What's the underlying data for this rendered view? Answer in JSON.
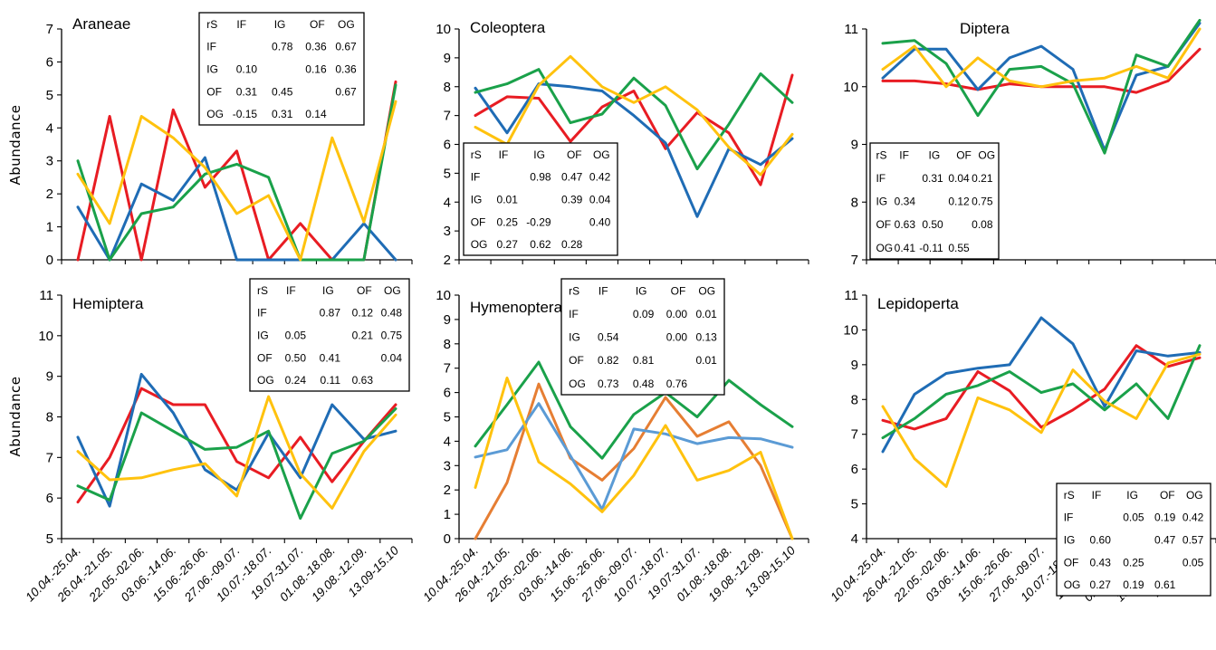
{
  "chart_data": [
    {
      "type": "line",
      "title": "Araneae",
      "ylabel": "Abundance",
      "ylim": [
        0,
        7
      ],
      "yticks": [
        0,
        1,
        2,
        3,
        4,
        5,
        6,
        7
      ],
      "categories": [
        "10.04.-25.04.",
        "26.04.-21.05.",
        "22.05.-02.06.",
        "03.06.-14.06.",
        "15.06.-26.06.",
        "27.06.-09.07.",
        "10.07.-18.07.",
        "19.07-31.07.",
        "01.08.-18.08.",
        "19.08.-12.09.",
        "13.09-15.10"
      ],
      "series": [
        {
          "color": "#e81c23",
          "values": [
            0,
            4.35,
            0,
            4.55,
            2.2,
            3.3,
            0,
            1.1,
            0,
            0,
            5.4
          ]
        },
        {
          "color": "#1f6cb5",
          "values": [
            1.6,
            0,
            2.3,
            1.8,
            3.1,
            0,
            0,
            0,
            0,
            1.1,
            0
          ]
        },
        {
          "color": "#1aa14a",
          "values": [
            3.0,
            0,
            1.4,
            1.6,
            2.6,
            2.9,
            2.5,
            0,
            0,
            0,
            5.3
          ]
        },
        {
          "color": "#ffc20e",
          "values": [
            2.6,
            1.1,
            4.35,
            3.7,
            2.8,
            1.4,
            1.95,
            0,
            3.7,
            1.15,
            4.8
          ]
        }
      ],
      "table": {
        "headers": [
          "rS",
          "IF",
          "IG",
          "OF",
          "OG"
        ],
        "rows": [
          [
            "IF",
            "",
            "0.78",
            "0.36",
            "0.67"
          ],
          [
            "IG",
            "0.10",
            "",
            "0.16",
            "0.36"
          ],
          [
            "OF",
            "0.31",
            "0.45",
            "",
            "0.67"
          ],
          [
            "OG",
            "-0.15",
            "0.31",
            "0.14",
            ""
          ]
        ]
      }
    },
    {
      "type": "line",
      "title": "Coleoptera",
      "ylabel": "",
      "ylim": [
        2,
        10
      ],
      "yticks": [
        2,
        3,
        4,
        5,
        6,
        7,
        8,
        9,
        10
      ],
      "categories": [
        "10.04.-25.04.",
        "26.04.-21.05.",
        "22.05.-02.06.",
        "03.06.-14.06.",
        "15.06.-26.06.",
        "27.06.-09.07.",
        "10.07.-18.07.",
        "19.07-31.07.",
        "01.08.-18.08.",
        "19.08.-12.09.",
        "13.09-15.10"
      ],
      "series": [
        {
          "color": "#e81c23",
          "values": [
            7.0,
            7.65,
            7.6,
            6.1,
            7.3,
            7.85,
            5.85,
            7.1,
            6.4,
            4.6,
            8.4
          ]
        },
        {
          "color": "#1f6cb5",
          "values": [
            7.95,
            6.4,
            8.1,
            8.0,
            7.85,
            7.0,
            6.05,
            3.5,
            5.85,
            5.3,
            6.2
          ]
        },
        {
          "color": "#1aa14a",
          "values": [
            7.8,
            8.1,
            8.6,
            6.75,
            7.05,
            8.3,
            7.35,
            5.15,
            6.7,
            8.45,
            7.45
          ]
        },
        {
          "color": "#ffc20e",
          "values": [
            6.6,
            6.0,
            8.05,
            9.05,
            8.0,
            7.45,
            8.0,
            7.2,
            5.9,
            4.95,
            6.35
          ]
        }
      ],
      "table": {
        "headers": [
          "rS",
          "IF",
          "IG",
          "OF",
          "OG"
        ],
        "rows": [
          [
            "IF",
            "",
            "0.98",
            "0.47",
            "0.42"
          ],
          [
            "IG",
            "0.01",
            "",
            "0.39",
            "0.04"
          ],
          [
            "OF",
            "0.25",
            "-0.29",
            "",
            "0.40"
          ],
          [
            "OG",
            "0.27",
            "0.62",
            "0.28",
            ""
          ]
        ]
      }
    },
    {
      "type": "line",
      "title": "Diptera",
      "ylabel": "",
      "ylim": [
        7,
        11
      ],
      "yticks": [
        7,
        8,
        9,
        10,
        11
      ],
      "categories": [
        "10.04.-25.04.",
        "26.04.-21.05.",
        "22.05.-02.06.",
        "03.06.-14.06.",
        "15.06.-26.06.",
        "27.06.-09.07.",
        "10.07.-18.07.",
        "19.07-31.07.",
        "01.08.-18.08.",
        "19.08.-12.09.",
        "13.09-15.10"
      ],
      "series": [
        {
          "color": "#e81c23",
          "values": [
            10.1,
            10.1,
            10.05,
            9.95,
            10.05,
            10.0,
            10.0,
            10.0,
            9.9,
            10.1,
            10.65
          ]
        },
        {
          "color": "#1f6cb5",
          "values": [
            10.15,
            10.65,
            10.65,
            9.95,
            10.5,
            10.7,
            10.3,
            8.9,
            10.2,
            10.35,
            11.1
          ]
        },
        {
          "color": "#1aa14a",
          "values": [
            10.75,
            10.8,
            10.4,
            9.5,
            10.3,
            10.35,
            10.05,
            8.85,
            10.55,
            10.35,
            11.15
          ]
        },
        {
          "color": "#ffc20e",
          "values": [
            10.3,
            10.7,
            10.0,
            10.5,
            10.1,
            10.0,
            10.1,
            10.15,
            10.35,
            10.15,
            11.0
          ]
        }
      ],
      "table": {
        "headers": [
          "rS",
          "IF",
          "IG",
          "OF",
          "OG"
        ],
        "rows": [
          [
            "IF",
            "",
            "0.31",
            "0.04",
            "0.21"
          ],
          [
            "IG",
            "0.34",
            "",
            "0.12",
            "0.75"
          ],
          [
            "OF",
            "0.63",
            "0.50",
            "",
            "0.08"
          ],
          [
            "OG",
            "0.41",
            "-0.11",
            "0.55",
            ""
          ]
        ]
      }
    },
    {
      "type": "line",
      "title": "Hemiptera",
      "ylabel": "Abundance",
      "ylim": [
        5,
        11
      ],
      "yticks": [
        5,
        6,
        7,
        8,
        9,
        10,
        11
      ],
      "categories": [
        "10.04.-25.04.",
        "26.04.-21.05.",
        "22.05.-02.06.",
        "03.06.-14.06.",
        "15.06.-26.06.",
        "27.06.-09.07.",
        "10.07.-18.07.",
        "19.07-31.07.",
        "01.08.-18.08.",
        "19.08.-12.09.",
        "13.09-15.10"
      ],
      "series": [
        {
          "color": "#e81c23",
          "values": [
            5.9,
            7.0,
            8.7,
            8.3,
            8.3,
            6.9,
            6.5,
            7.5,
            6.4,
            7.4,
            8.3
          ]
        },
        {
          "color": "#1f6cb5",
          "values": [
            7.5,
            5.8,
            9.05,
            8.1,
            6.7,
            6.2,
            7.6,
            6.5,
            8.3,
            7.45,
            7.65
          ]
        },
        {
          "color": "#1aa14a",
          "values": [
            6.3,
            5.95,
            8.1,
            7.65,
            7.2,
            7.25,
            7.65,
            5.5,
            7.1,
            7.4,
            8.2
          ]
        },
        {
          "color": "#ffc20e",
          "values": [
            7.15,
            6.45,
            6.5,
            6.7,
            6.85,
            6.05,
            8.5,
            6.6,
            5.75,
            7.15,
            8.05
          ]
        }
      ],
      "table": {
        "headers": [
          "rS",
          "IF",
          "IG",
          "OF",
          "OG"
        ],
        "rows": [
          [
            "IF",
            "",
            "0.87",
            "0.12",
            "0.48"
          ],
          [
            "IG",
            "0.05",
            "",
            "0.21",
            "0.75"
          ],
          [
            "OF",
            "0.50",
            "0.41",
            "",
            "0.04"
          ],
          [
            "OG",
            "0.24",
            "0.11",
            "0.63",
            ""
          ]
        ]
      }
    },
    {
      "type": "line",
      "title": "Hymenoptera",
      "ylabel": "",
      "ylim": [
        0,
        10
      ],
      "yticks": [
        0,
        1,
        2,
        3,
        4,
        5,
        6,
        7,
        8,
        9,
        10
      ],
      "categories": [
        "10.04.-25.04.",
        "26.04.-21.05.",
        "22.05.-02.06.",
        "03.06.-14.06.",
        "15.06.-26.06.",
        "27.06.-09.07.",
        "10.07.-18.07.",
        "19.07-31.07.",
        "01.08.-18.08.",
        "19.08.-12.09.",
        "13.09-15.10"
      ],
      "series": [
        {
          "color": "#1aa14a",
          "values": [
            3.8,
            5.5,
            7.25,
            4.6,
            3.3,
            5.1,
            6.0,
            5.0,
            6.5,
            5.5,
            4.6
          ]
        },
        {
          "color": "#e67e33",
          "values": [
            0,
            2.3,
            6.35,
            3.3,
            2.4,
            3.7,
            5.8,
            4.2,
            4.8,
            3.0,
            0
          ]
        },
        {
          "color": "#5b9bd5",
          "values": [
            3.35,
            3.65,
            5.55,
            3.4,
            1.2,
            4.5,
            4.3,
            3.9,
            4.15,
            4.1,
            3.75
          ]
        },
        {
          "color": "#ffc20e",
          "values": [
            2.1,
            6.6,
            3.15,
            2.25,
            1.1,
            2.6,
            4.65,
            2.4,
            2.8,
            3.55,
            0
          ]
        }
      ],
      "table": {
        "headers": [
          "rS",
          "IF",
          "IG",
          "OF",
          "OG"
        ],
        "rows": [
          [
            "IF",
            "",
            "0.09",
            "0.00",
            "0.01"
          ],
          [
            "IG",
            "0.54",
            "",
            "0.00",
            "0.13"
          ],
          [
            "OF",
            "0.82",
            "0.81",
            "",
            "0.01"
          ],
          [
            "OG",
            "0.73",
            "0.48",
            "0.76",
            ""
          ]
        ]
      }
    },
    {
      "type": "line",
      "title": "Lepidoperta",
      "ylabel": "",
      "ylim": [
        4,
        11
      ],
      "yticks": [
        4,
        5,
        6,
        7,
        8,
        9,
        10,
        11
      ],
      "categories": [
        "10.04.-25.04.",
        "26.04.-21.05.",
        "22.05.-02.06.",
        "03.06.-14.06.",
        "15.06.-26.06.",
        "27.06.-09.07.",
        "10.07.-18.07.",
        "19.07-31.07.",
        "01.08.-18.08.",
        "19.08.-12.09.",
        "13.09-15.10"
      ],
      "series": [
        {
          "color": "#e81c23",
          "values": [
            7.4,
            7.15,
            7.45,
            8.8,
            8.25,
            7.2,
            7.7,
            8.3,
            9.55,
            8.95,
            9.2
          ]
        },
        {
          "color": "#1f6cb5",
          "values": [
            6.5,
            8.15,
            8.75,
            8.9,
            9.0,
            10.35,
            9.6,
            7.8,
            9.4,
            9.25,
            9.35
          ]
        },
        {
          "color": "#1aa14a",
          "values": [
            6.9,
            7.45,
            8.15,
            8.4,
            8.8,
            8.2,
            8.45,
            7.7,
            8.45,
            7.45,
            9.55
          ]
        },
        {
          "color": "#ffc20e",
          "values": [
            7.8,
            6.3,
            5.5,
            8.05,
            7.7,
            7.05,
            8.85,
            7.95,
            7.45,
            9.05,
            9.3
          ]
        }
      ],
      "table": {
        "headers": [
          "rS",
          "IF",
          "IG",
          "OF",
          "OG"
        ],
        "rows": [
          [
            "IF",
            "",
            "0.05",
            "0.19",
            "0.42"
          ],
          [
            "IG",
            "0.60",
            "",
            "0.47",
            "0.57"
          ],
          [
            "OF",
            "0.43",
            "0.25",
            "",
            "0.05"
          ],
          [
            "OG",
            "0.27",
            "0.19",
            "0.61",
            ""
          ]
        ]
      }
    }
  ]
}
